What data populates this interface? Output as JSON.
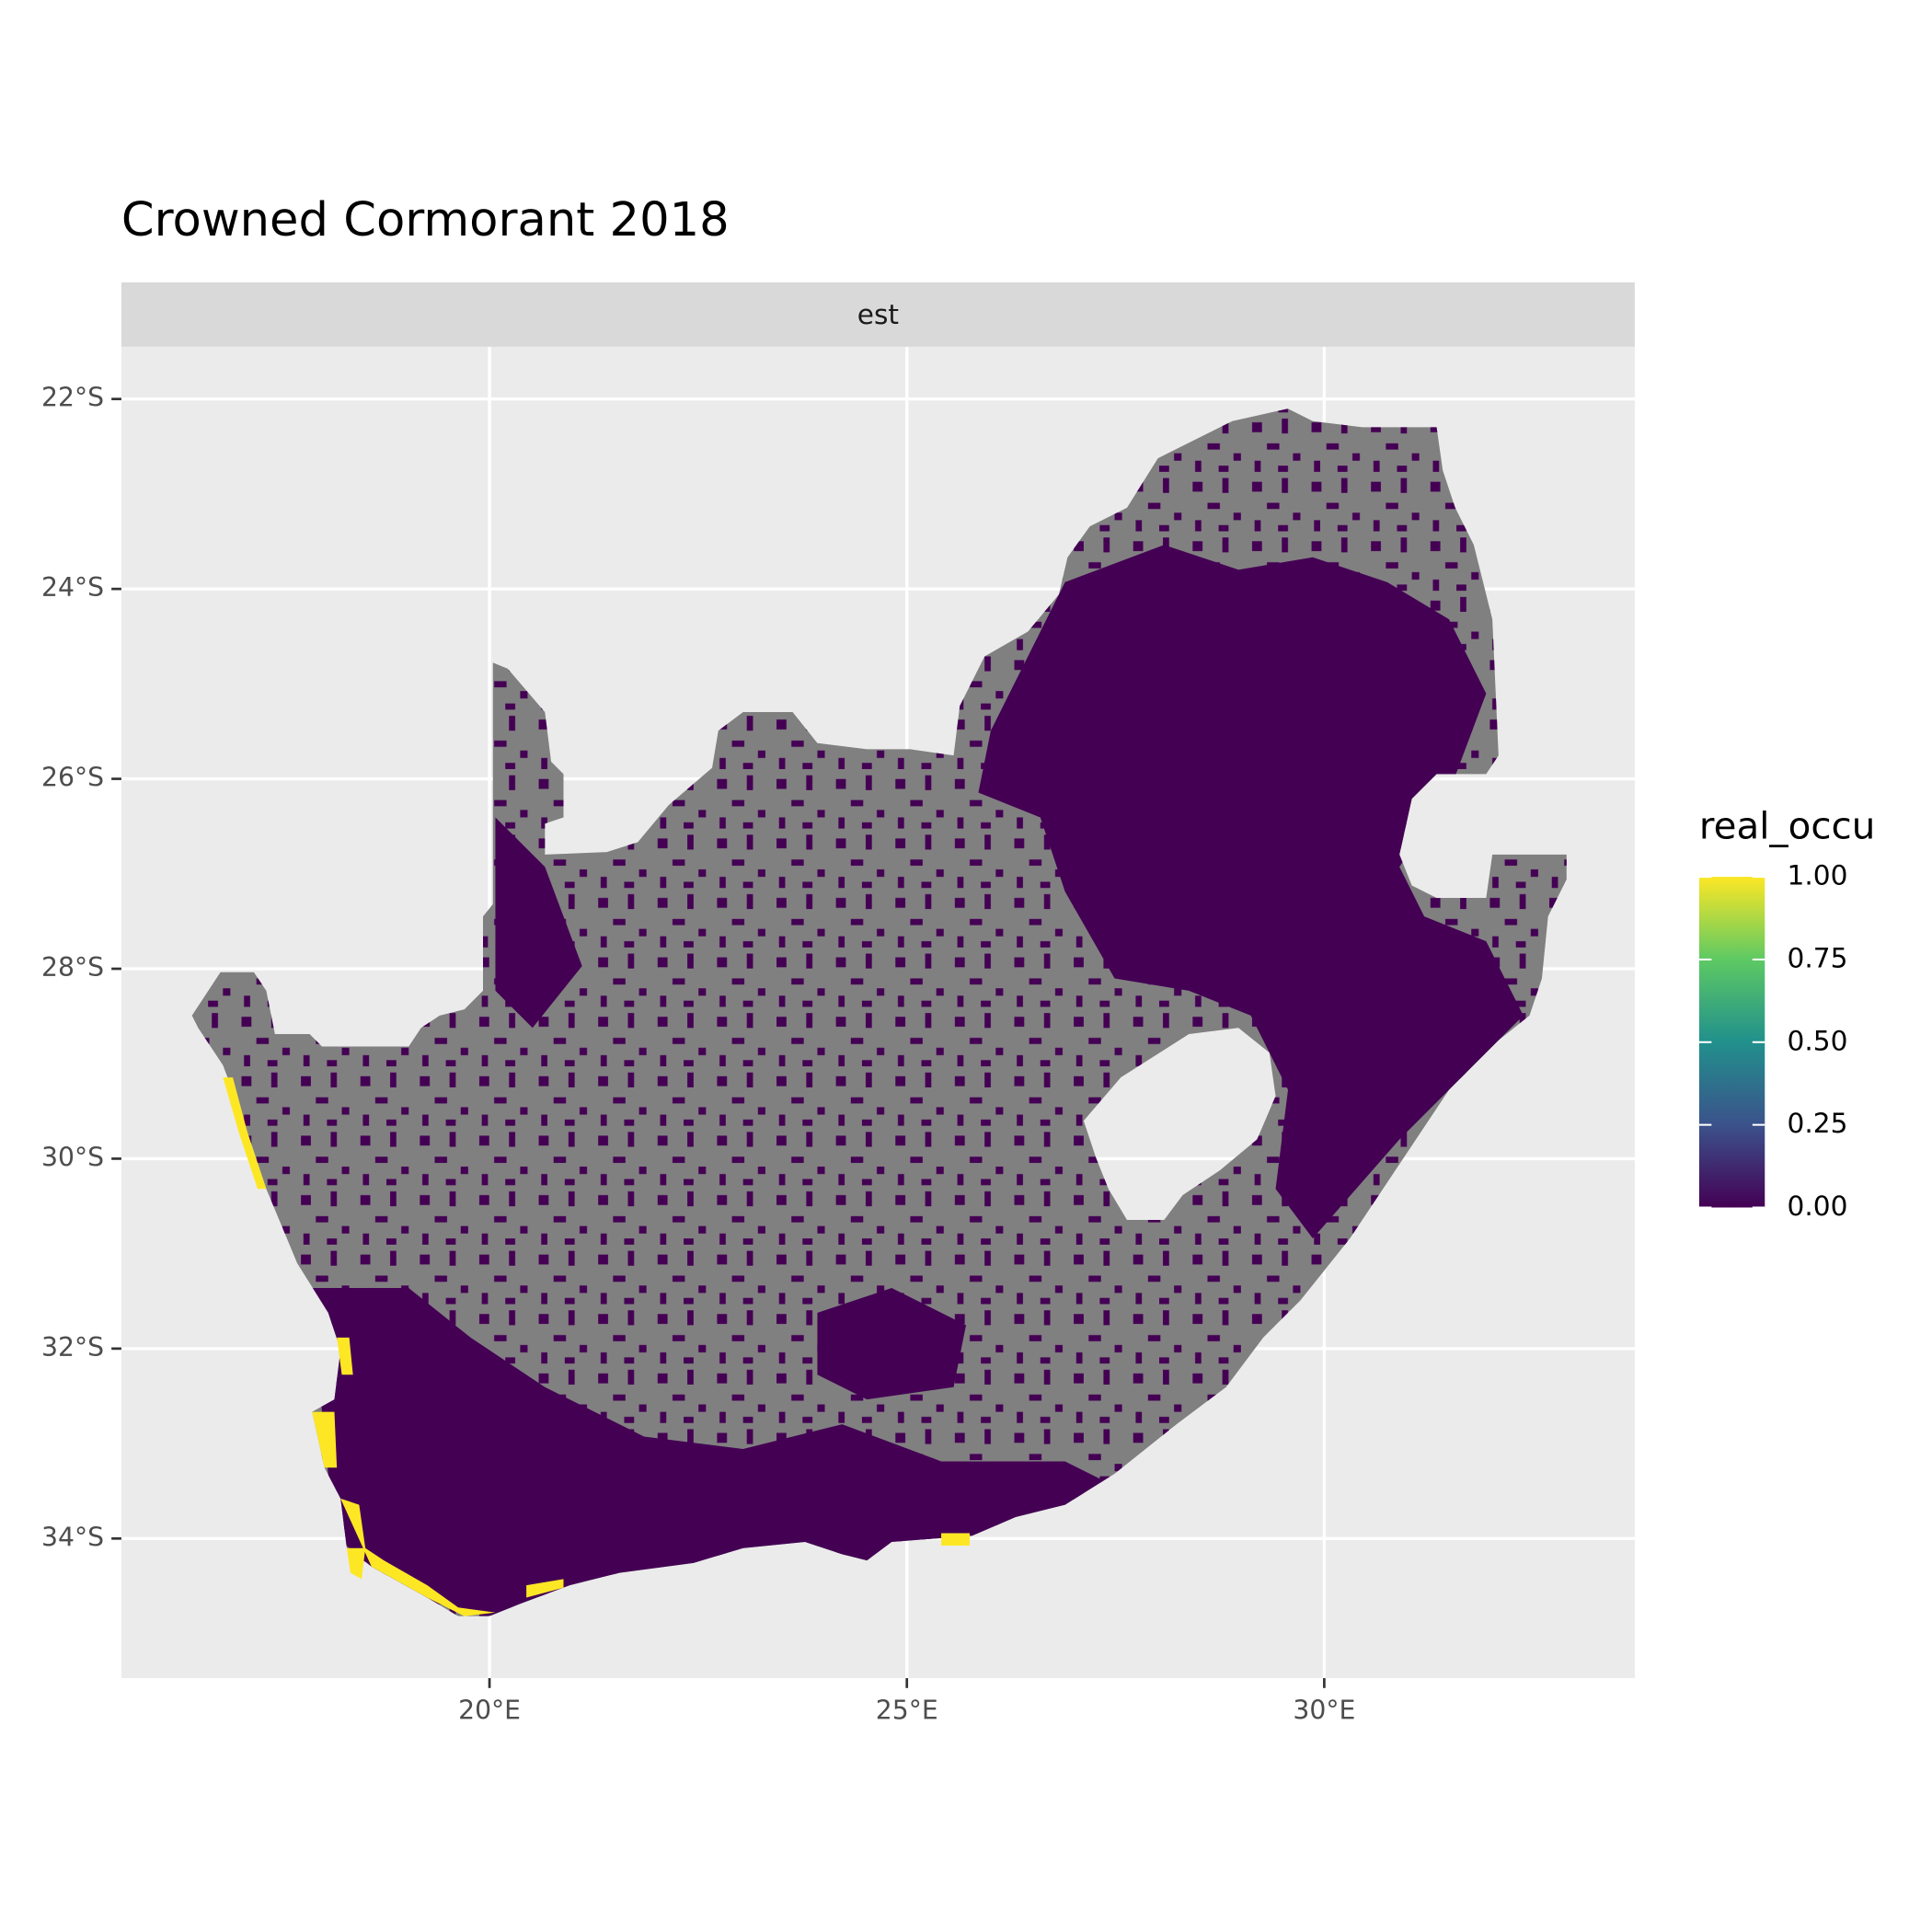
{
  "chart_data": {
    "type": "raster-map",
    "title": "Crowned Cormorant 2018",
    "facet": "est",
    "xlim": [
      15.59,
      33.72
    ],
    "ylim": [
      -35.47,
      -21.45
    ],
    "xticks": [
      {
        "value": 20,
        "label": "20°E"
      },
      {
        "value": 25,
        "label": "25°E"
      },
      {
        "value": 30,
        "label": "30°E"
      }
    ],
    "yticks": [
      {
        "value": -22,
        "label": "22°S"
      },
      {
        "value": -24,
        "label": "24°S"
      },
      {
        "value": -26,
        "label": "26°S"
      },
      {
        "value": -28,
        "label": "28°S"
      },
      {
        "value": -30,
        "label": "30°S"
      },
      {
        "value": -32,
        "label": "32°S"
      },
      {
        "value": -34,
        "label": "34°S"
      }
    ],
    "grid": true,
    "na_color": "#808080",
    "colorbar": {
      "title": "real_occu",
      "lim": [
        0,
        1
      ],
      "ticks": [
        {
          "value": 0,
          "label": "0.00"
        },
        {
          "value": 0.25,
          "label": "0.25"
        },
        {
          "value": 0.5,
          "label": "0.50"
        },
        {
          "value": 0.75,
          "label": "0.75"
        },
        {
          "value": 1,
          "label": "1.00"
        }
      ],
      "colors": [
        "#440154",
        "#3b528b",
        "#21908c",
        "#5dc963",
        "#fde725"
      ]
    }
  }
}
